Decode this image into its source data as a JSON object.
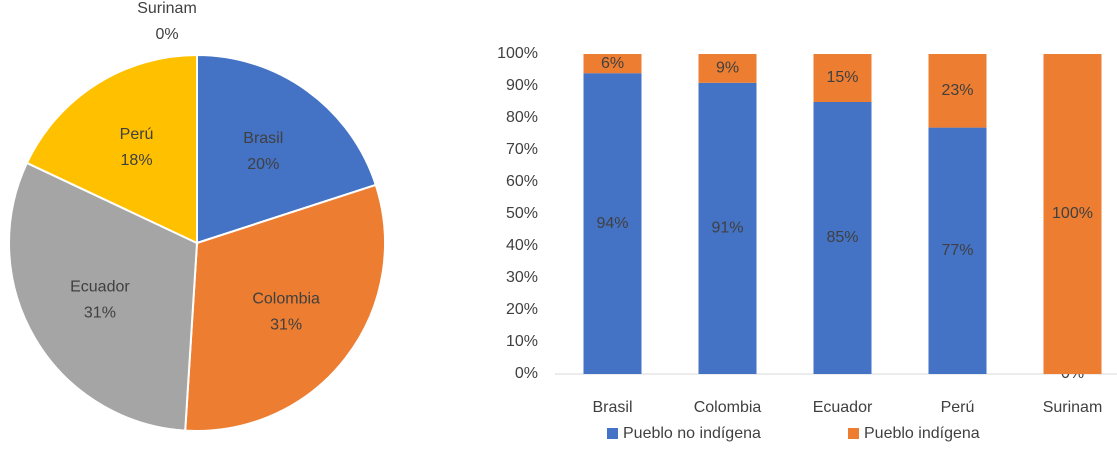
{
  "chart_data": [
    {
      "type": "pie",
      "categories": [
        "Brasil",
        "Colombia",
        "Ecuador",
        "Perú",
        "Surinam"
      ],
      "values": [
        20,
        31,
        31,
        18,
        0
      ],
      "value_labels": [
        "20%",
        "31%",
        "31%",
        "18%",
        "0%"
      ],
      "colors": [
        "#4472c4",
        "#ed7d31",
        "#a5a5a5",
        "#ffc000",
        "#5b9bd5"
      ]
    },
    {
      "type": "stacked_bar",
      "categories": [
        "Brasil",
        "Colombia",
        "Ecuador",
        "Perú",
        "Surinam"
      ],
      "series": [
        {
          "name": "Pueblo no indígena",
          "color": "#4472c4",
          "values": [
            94,
            91,
            85,
            77,
            0
          ],
          "value_labels": [
            "94%",
            "91%",
            "85%",
            "77%",
            "0%"
          ]
        },
        {
          "name": "Pueblo indígena",
          "color": "#ed7d31",
          "values": [
            6,
            9,
            15,
            23,
            100
          ],
          "value_labels": [
            "6%",
            "9%",
            "15%",
            "23%",
            "100%"
          ]
        }
      ],
      "ylim": [
        0,
        100
      ],
      "yticks": [
        {
          "value": 0,
          "label": "0%"
        },
        {
          "value": 10,
          "label": "10%"
        },
        {
          "value": 20,
          "label": "20%"
        },
        {
          "value": 30,
          "label": "30%"
        },
        {
          "value": 40,
          "label": "40%"
        },
        {
          "value": 50,
          "label": "50%"
        },
        {
          "value": 60,
          "label": "60%"
        },
        {
          "value": 70,
          "label": "70%"
        },
        {
          "value": 80,
          "label": "80%"
        },
        {
          "value": 90,
          "label": "90%"
        },
        {
          "value": 100,
          "label": "100%"
        }
      ],
      "grid": false,
      "legend": "bottom"
    }
  ]
}
